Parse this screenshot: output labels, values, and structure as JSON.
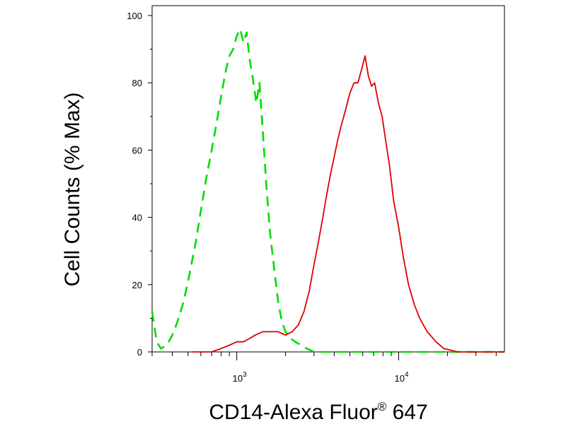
{
  "chart_data": {
    "type": "line",
    "xlabel": "CD14-Alexa Fluor",
    "xlabel_superscript": "®",
    "xlabel_suffix": " 647",
    "ylabel": "Cell Counts (% Max)",
    "x_scale": "log",
    "xlim": [
      300,
      45000
    ],
    "ylim": [
      0,
      100
    ],
    "yticks": [
      {
        "value": 0,
        "label": "0"
      },
      {
        "value": 20,
        "label": "20"
      },
      {
        "value": 40,
        "label": "40"
      },
      {
        "value": 60,
        "label": "60"
      },
      {
        "value": 80,
        "label": "80"
      },
      {
        "value": 100,
        "label": "100"
      }
    ],
    "xticks_major": [
      {
        "value": 1000,
        "base": "10",
        "exp": "3"
      },
      {
        "value": 10000,
        "base": "10",
        "exp": "4"
      }
    ],
    "xticks_minor": [
      300,
      400,
      500,
      600,
      700,
      800,
      900,
      2000,
      3000,
      4000,
      5000,
      6000,
      7000,
      8000,
      9000,
      20000,
      30000,
      40000
    ],
    "grid": false,
    "legend": "none",
    "series": [
      {
        "color": "#00dd00",
        "style": "dashed",
        "x": [
          300,
          320,
          340,
          370,
          400,
          430,
          470,
          510,
          560,
          600,
          650,
          700,
          750,
          800,
          850,
          900,
          950,
          1000,
          1050,
          1100,
          1150,
          1200,
          1260,
          1320,
          1380,
          1450,
          1520,
          1600,
          1700,
          1800,
          1900,
          2000,
          2150,
          2300,
          2500,
          2700,
          3000,
          3500,
          4000,
          6000,
          10000,
          20000,
          45000
        ],
        "y": [
          12,
          3,
          1,
          2,
          5,
          9,
          15,
          23,
          33,
          42,
          52,
          60,
          68,
          76,
          83,
          88,
          90,
          94,
          96,
          92,
          95,
          87,
          81,
          74,
          80,
          65,
          50,
          36,
          25,
          15,
          9,
          6,
          4,
          3,
          2,
          1,
          0,
          0,
          0,
          0,
          0,
          0,
          0
        ]
      },
      {
        "color": "#e00000",
        "style": "solid",
        "x": [
          530,
          600,
          700,
          800,
          900,
          1000,
          1100,
          1200,
          1300,
          1450,
          1600,
          1800,
          2000,
          2200,
          2400,
          2600,
          2800,
          3000,
          3200,
          3400,
          3600,
          3800,
          4000,
          4200,
          4400,
          4700,
          5000,
          5300,
          5600,
          5900,
          6200,
          6500,
          6800,
          7100,
          7500,
          7900,
          8300,
          8800,
          9300,
          10000,
          10700,
          11500,
          12500,
          13500,
          15000,
          17000,
          19000,
          21000,
          23000,
          26000,
          30000,
          45000
        ],
        "y": [
          0,
          0,
          0,
          1,
          2,
          3,
          3,
          4,
          5,
          6,
          6,
          6,
          5,
          6,
          8,
          12,
          18,
          26,
          33,
          40,
          47,
          53,
          58,
          63,
          67,
          72,
          77,
          80,
          80,
          84,
          88,
          82,
          79,
          80,
          74,
          70,
          63,
          55,
          45,
          37,
          28,
          20,
          14,
          10,
          6,
          3,
          1,
          0.5,
          0,
          0,
          0,
          0
        ]
      }
    ]
  }
}
